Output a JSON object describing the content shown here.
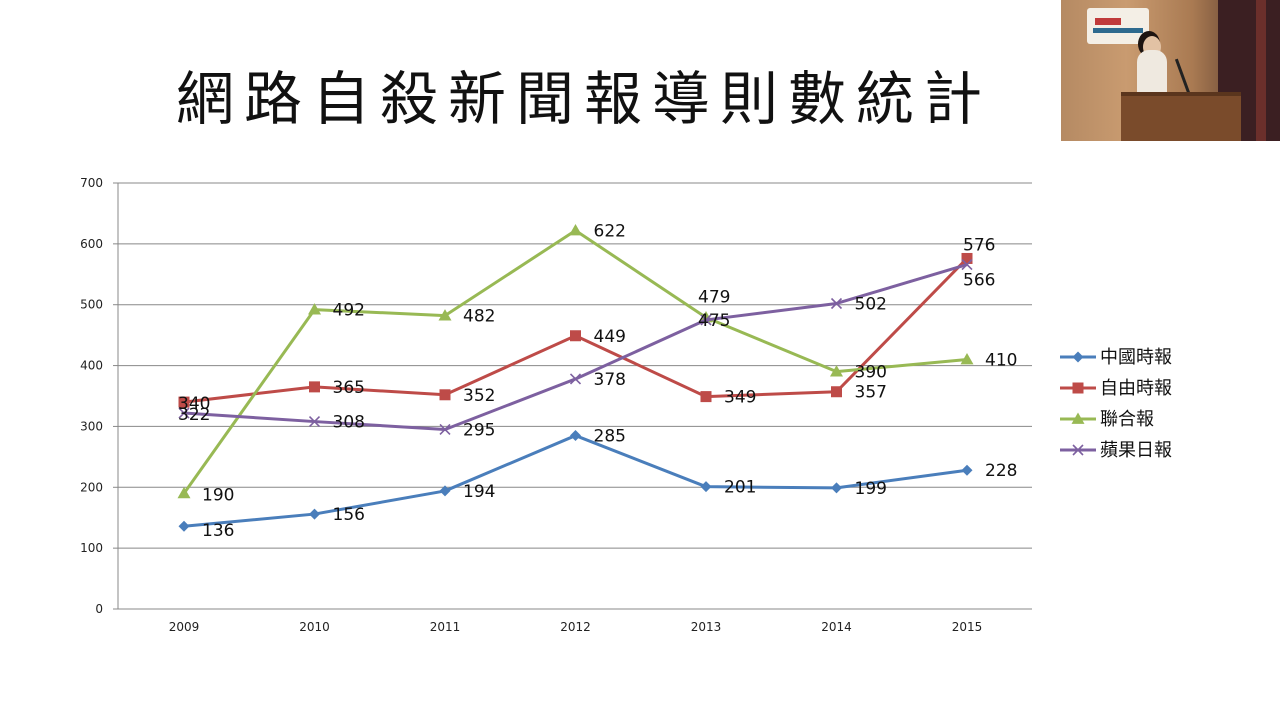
{
  "slide": {
    "title": "網路自殺新聞報導則數統計"
  },
  "speaker_video": {
    "icon": "speaker-video-feed"
  },
  "chart_data": {
    "type": "line",
    "title": "",
    "xlabel": "",
    "ylabel": "",
    "categories": [
      "2009",
      "2010",
      "2011",
      "2012",
      "2013",
      "2014",
      "2015"
    ],
    "ylim": [
      0,
      700
    ],
    "yticks": [
      0,
      100,
      200,
      300,
      400,
      500,
      600,
      700
    ],
    "grid": true,
    "legend_position": "right",
    "series": [
      {
        "name": "中國時報",
        "values": [
          136,
          156,
          194,
          285,
          201,
          199,
          228
        ],
        "color": "#4a7ebb",
        "marker": "diamond"
      },
      {
        "name": "自由時報",
        "values": [
          340,
          365,
          352,
          449,
          349,
          357,
          576
        ],
        "color": "#be4b48",
        "marker": "square"
      },
      {
        "name": "聯合報",
        "values": [
          190,
          492,
          482,
          622,
          479,
          390,
          410
        ],
        "color": "#98b954",
        "marker": "triangle"
      },
      {
        "name": "蘋果日報",
        "values": [
          322,
          308,
          295,
          378,
          475,
          502,
          566
        ],
        "color": "#7d60a0",
        "marker": "x"
      }
    ]
  }
}
